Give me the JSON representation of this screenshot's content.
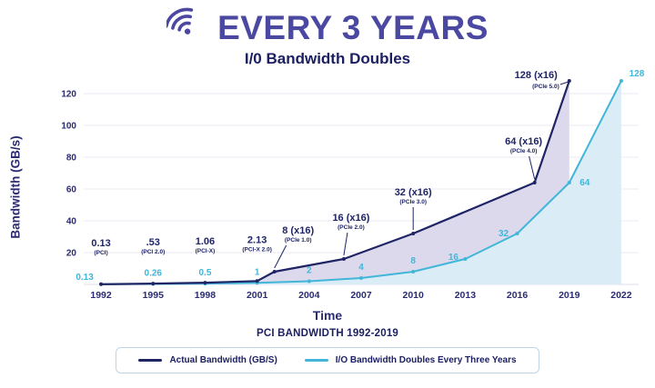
{
  "header": {
    "title": "EVERY 3 YEARS",
    "subtitle": "I/0 Bandwidth Doubles",
    "icon": "wifi-icon"
  },
  "chart_data": {
    "type": "line",
    "title": "PCI BANDWIDTH 1992-2019",
    "xlabel": "Time",
    "ylabel": "Bandwidth (GB/s)",
    "xlim": [
      1991,
      2023
    ],
    "ylim": [
      0,
      130
    ],
    "x_ticks": [
      1992,
      1995,
      1998,
      2001,
      2004,
      2007,
      2010,
      2013,
      2016,
      2019,
      2022
    ],
    "y_ticks": [
      20,
      40,
      60,
      80,
      100,
      120
    ],
    "grid": "horizontal",
    "legend_position": "bottom",
    "colors": {
      "fill_between": "#dcd9ed",
      "fill_under": "#daecf5",
      "grid": "#e9e9f3",
      "axis_text": "#2b2b72"
    },
    "series": [
      {
        "name": "Actual Bandwidth (GB/S)",
        "color": "#1e2464",
        "points": [
          {
            "x": 1992,
            "y": 0.13,
            "label": "0.13",
            "sublabel": "(PCI)"
          },
          {
            "x": 1995,
            "y": 0.53,
            "label": ".53",
            "sublabel": "(PCI 2.0)"
          },
          {
            "x": 1998,
            "y": 1.06,
            "label": "1.06",
            "sublabel": "(PCI-X)"
          },
          {
            "x": 2001,
            "y": 2.13,
            "label": "2.13",
            "sublabel": "(PCI-X 2.0)"
          },
          {
            "x": 2002,
            "y": 8,
            "label": "8 (x16)",
            "sublabel": "(PCIe 1.0)",
            "dx": 26,
            "leader": true
          },
          {
            "x": 2006,
            "y": 16,
            "label": "16 (x16)",
            "sublabel": "(PCIe 2.0)",
            "dx": 8,
            "leader": true
          },
          {
            "x": 2010,
            "y": 32,
            "label": "32 (x16)",
            "sublabel": "(PCIe 3.0)",
            "dx": 0,
            "leader": true
          },
          {
            "x": 2017,
            "y": 64,
            "label": "64 (x16)",
            "sublabel": "(PCIe 4.0)",
            "dx": -12,
            "leader": true
          },
          {
            "x": 2019,
            "y": 128,
            "label": "128 (x16)",
            "sublabel": "(PCIe 5.0)",
            "side": "left"
          }
        ]
      },
      {
        "name": "I/O Bandwidth Doubles Every Three Years",
        "color": "#41b6d9",
        "points": [
          {
            "x": 1992,
            "y": 0.13,
            "label": "0.13",
            "dx": -18,
            "dy": 4
          },
          {
            "x": 1995,
            "y": 0.26,
            "label": "0.26"
          },
          {
            "x": 1998,
            "y": 0.5,
            "label": "0.5"
          },
          {
            "x": 2001,
            "y": 1,
            "label": "1"
          },
          {
            "x": 2004,
            "y": 2,
            "label": "2"
          },
          {
            "x": 2007,
            "y": 4,
            "label": "4"
          },
          {
            "x": 2010,
            "y": 8,
            "label": "8"
          },
          {
            "x": 2013,
            "y": 16,
            "label": "16",
            "dx": -13,
            "dy": 10
          },
          {
            "x": 2016,
            "y": 32,
            "label": "32",
            "dx": -15,
            "dy": 12
          },
          {
            "x": 2019,
            "y": 64,
            "label": "64",
            "dx": 17,
            "dy": 12
          },
          {
            "x": 2022,
            "y": 128,
            "label": "128",
            "dx": 17,
            "dy": 4
          }
        ]
      }
    ]
  }
}
